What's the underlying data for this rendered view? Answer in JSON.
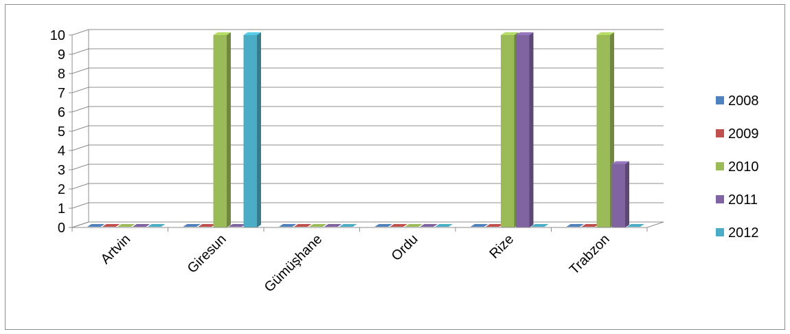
{
  "chart_data": {
    "type": "bar",
    "style": "3d-clustered-column",
    "categories": [
      "Artvin",
      "Giresun",
      "Gümüşhane",
      "Ordu",
      "Rize",
      "Trabzon"
    ],
    "series": [
      {
        "name": "2008",
        "color": "#4f81bd",
        "values": [
          0,
          0,
          0,
          0,
          0,
          0
        ]
      },
      {
        "name": "2009",
        "color": "#c0504d",
        "values": [
          0,
          0,
          0,
          0,
          0,
          0
        ]
      },
      {
        "name": "2010",
        "color": "#9bbb59",
        "values": [
          0,
          10,
          0,
          0,
          10,
          10
        ]
      },
      {
        "name": "2011",
        "color": "#8064a2",
        "values": [
          0,
          0,
          0,
          0,
          10,
          3.3
        ]
      },
      {
        "name": "2012",
        "color": "#4bacc6",
        "values": [
          0,
          10,
          0,
          0,
          0,
          0
        ]
      }
    ],
    "yticks": [
      "0",
      "1",
      "2",
      "3",
      "4",
      "5",
      "6",
      "7",
      "8",
      "9",
      "10"
    ],
    "ylim": [
      0,
      10
    ],
    "grid": true,
    "legend_position": "right"
  }
}
